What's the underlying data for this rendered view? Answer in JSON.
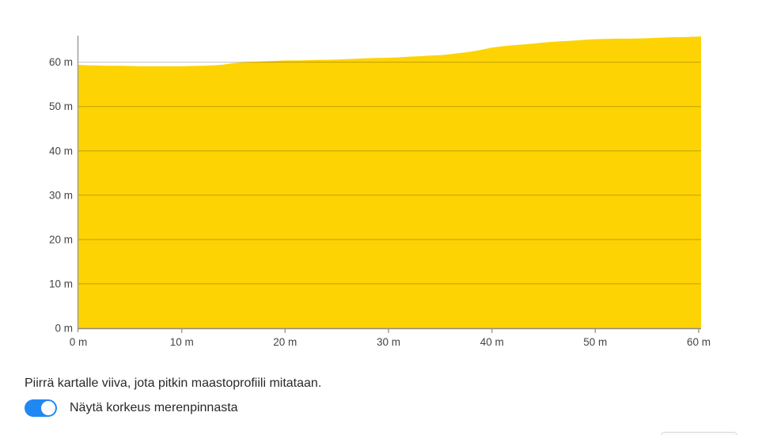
{
  "chart_data": {
    "type": "area",
    "title": "",
    "xlabel": "",
    "ylabel": "",
    "unit": "m",
    "x": [
      0,
      1,
      2,
      3,
      4,
      5,
      6,
      7,
      8,
      9,
      10,
      11,
      12,
      13,
      14,
      15,
      16,
      17,
      18,
      19,
      20,
      21,
      22,
      23,
      24,
      25,
      26,
      27,
      28,
      29,
      30,
      31,
      32,
      33,
      34,
      35,
      36,
      37,
      38,
      39,
      40,
      41,
      42,
      43,
      44,
      45,
      46,
      47,
      48,
      49,
      50,
      51,
      52,
      53,
      54,
      55,
      56,
      57,
      58,
      59,
      60
    ],
    "y": [
      59.4,
      59.3,
      59.25,
      59.2,
      59.2,
      59.15,
      59.1,
      59.1,
      59.1,
      59.1,
      59.1,
      59.15,
      59.2,
      59.3,
      59.45,
      59.8,
      60.0,
      60.1,
      60.2,
      60.3,
      60.4,
      60.4,
      60.45,
      60.5,
      60.55,
      60.6,
      60.7,
      60.8,
      60.9,
      60.95,
      61.0,
      61.1,
      61.25,
      61.35,
      61.5,
      61.6,
      61.8,
      62.1,
      62.4,
      62.8,
      63.3,
      63.6,
      63.8,
      64.0,
      64.2,
      64.45,
      64.6,
      64.75,
      64.9,
      65.05,
      65.2,
      65.25,
      65.3,
      65.3,
      65.35,
      65.4,
      65.5,
      65.6,
      65.65,
      65.7,
      65.8
    ],
    "xlim": [
      0,
      60
    ],
    "ylim": [
      0,
      66
    ],
    "x_ticks": [
      0,
      10,
      20,
      30,
      40,
      50,
      60
    ],
    "x_tick_labels": [
      "0 m",
      "10 m",
      "20 m",
      "30 m",
      "40 m",
      "50 m",
      "60 m"
    ],
    "y_ticks": [
      0,
      10,
      20,
      30,
      40,
      50,
      60
    ],
    "y_tick_labels": [
      "0 m",
      "10 m",
      "20 m",
      "30 m",
      "40 m",
      "50 m",
      "60 m"
    ],
    "grid_on": true,
    "legend": "none",
    "area_color": "#fdd303",
    "grid_color": "rgba(0,0,0,0.24)",
    "axis_line_color": "#9e9e9e",
    "tick_color": "#9e9e9e",
    "tick_label_color": "#454545"
  },
  "footer": {
    "instruction": "Piirrä kartalle viiva, jota pitkin maastoprofiili mitataan.",
    "toggle_label": "Näytä korkeus merenpinnasta",
    "toggle_state": "on",
    "toggle_color": "#2188f3"
  }
}
